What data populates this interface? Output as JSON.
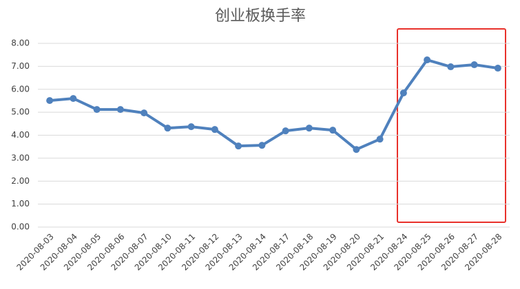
{
  "chart_data": {
    "type": "line",
    "title": "创业板换手率",
    "categories": [
      "2020-08-03",
      "2020-08-04",
      "2020-08-05",
      "2020-08-06",
      "2020-08-07",
      "2020-08-10",
      "2020-08-11",
      "2020-08-12",
      "2020-08-13",
      "2020-08-14",
      "2020-08-17",
      "2020-08-18",
      "2020-08-19",
      "2020-08-20",
      "2020-08-21",
      "2020-08-24",
      "2020-08-25",
      "2020-08-26",
      "2020-08-27",
      "2020-08-28"
    ],
    "values": [
      5.51,
      5.6,
      5.12,
      5.12,
      4.97,
      4.31,
      4.37,
      4.25,
      3.53,
      3.56,
      4.19,
      4.31,
      4.22,
      3.38,
      3.83,
      5.84,
      7.28,
      6.98,
      7.07,
      6.92
    ],
    "color": "#4f81bd",
    "ylim": [
      0,
      8
    ],
    "yticks": [
      {
        "value": 0,
        "label": "0.00"
      },
      {
        "value": 1,
        "label": "1.00"
      },
      {
        "value": 2,
        "label": "2.00"
      },
      {
        "value": 3,
        "label": "3.00"
      },
      {
        "value": 4,
        "label": "4.00"
      },
      {
        "value": 5,
        "label": "5.00"
      },
      {
        "value": 6,
        "label": "6.00"
      },
      {
        "value": 7,
        "label": "7.00"
      },
      {
        "value": 8,
        "label": "8.00"
      }
    ],
    "grid": true
  }
}
